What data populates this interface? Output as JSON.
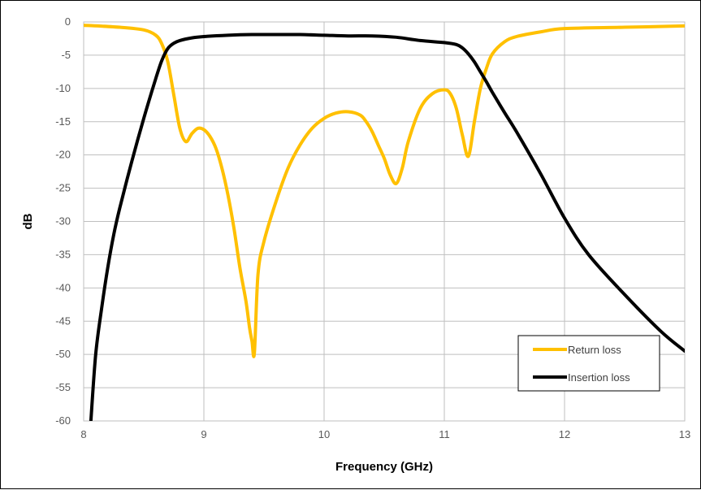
{
  "chart_data": {
    "type": "line",
    "title": "",
    "xlabel": "Frequency (GHz)",
    "ylabel": "dB",
    "xlim": [
      8,
      13
    ],
    "ylim": [
      -60,
      0
    ],
    "xticks": [
      8,
      9,
      10,
      11,
      12,
      13
    ],
    "yticks": [
      0,
      -5,
      -10,
      -15,
      -20,
      -25,
      -30,
      -35,
      -40,
      -45,
      -50,
      -55,
      -60
    ],
    "grid": true,
    "legend_position": "bottom-right",
    "series": [
      {
        "name": "Return loss",
        "color": "#FFC000",
        "x": [
          8.0,
          8.3,
          8.5,
          8.6,
          8.65,
          8.7,
          8.75,
          8.8,
          8.85,
          8.9,
          8.95,
          9.0,
          9.05,
          9.1,
          9.15,
          9.2,
          9.25,
          9.3,
          9.35,
          9.38,
          9.4,
          9.42,
          9.45,
          9.5,
          9.6,
          9.7,
          9.8,
          9.9,
          10.0,
          10.1,
          10.2,
          10.3,
          10.35,
          10.4,
          10.45,
          10.5,
          10.55,
          10.6,
          10.65,
          10.7,
          10.8,
          10.9,
          11.0,
          11.05,
          11.1,
          11.15,
          11.2,
          11.25,
          11.3,
          11.35,
          11.4,
          11.5,
          11.6,
          11.8,
          12.0,
          12.5,
          13.0
        ],
        "y": [
          -0.5,
          -0.8,
          -1.2,
          -2.0,
          -3.3,
          -6.0,
          -11.0,
          -16.0,
          -18.0,
          -16.8,
          -16.0,
          -16.2,
          -17.2,
          -19.0,
          -22.0,
          -26.0,
          -31.0,
          -37.0,
          -42.0,
          -46.0,
          -48.0,
          -49.8,
          -38.0,
          -33.0,
          -27.0,
          -22.0,
          -18.5,
          -16.0,
          -14.5,
          -13.7,
          -13.5,
          -14.0,
          -15.0,
          -16.5,
          -18.5,
          -20.5,
          -23.0,
          -24.3,
          -22.0,
          -18.0,
          -13.0,
          -10.8,
          -10.2,
          -10.8,
          -13.0,
          -17.0,
          -20.2,
          -15.0,
          -10.0,
          -7.0,
          -4.8,
          -3.0,
          -2.2,
          -1.5,
          -1.0,
          -0.8,
          -0.6
        ]
      },
      {
        "name": "Insertion loss",
        "color": "#000000",
        "x": [
          8.06,
          8.1,
          8.15,
          8.2,
          8.25,
          8.3,
          8.4,
          8.5,
          8.6,
          8.65,
          8.7,
          8.75,
          8.8,
          8.9,
          9.0,
          9.2,
          9.4,
          9.6,
          9.8,
          10.0,
          10.2,
          10.4,
          10.6,
          10.8,
          11.0,
          11.1,
          11.15,
          11.2,
          11.25,
          11.3,
          11.35,
          11.4,
          11.5,
          11.6,
          11.8,
          12.0,
          12.2,
          12.5,
          12.8,
          13.0
        ],
        "y": [
          -60.0,
          -50.0,
          -43.0,
          -37.0,
          -32.0,
          -28.0,
          -21.0,
          -14.5,
          -8.5,
          -5.8,
          -4.0,
          -3.2,
          -2.8,
          -2.4,
          -2.2,
          -2.0,
          -1.9,
          -1.9,
          -1.9,
          -2.0,
          -2.1,
          -2.1,
          -2.3,
          -2.8,
          -3.1,
          -3.4,
          -3.9,
          -4.8,
          -6.0,
          -7.5,
          -9.0,
          -10.6,
          -13.6,
          -16.5,
          -22.8,
          -29.5,
          -35.0,
          -41.0,
          -46.5,
          -49.5
        ]
      }
    ]
  }
}
